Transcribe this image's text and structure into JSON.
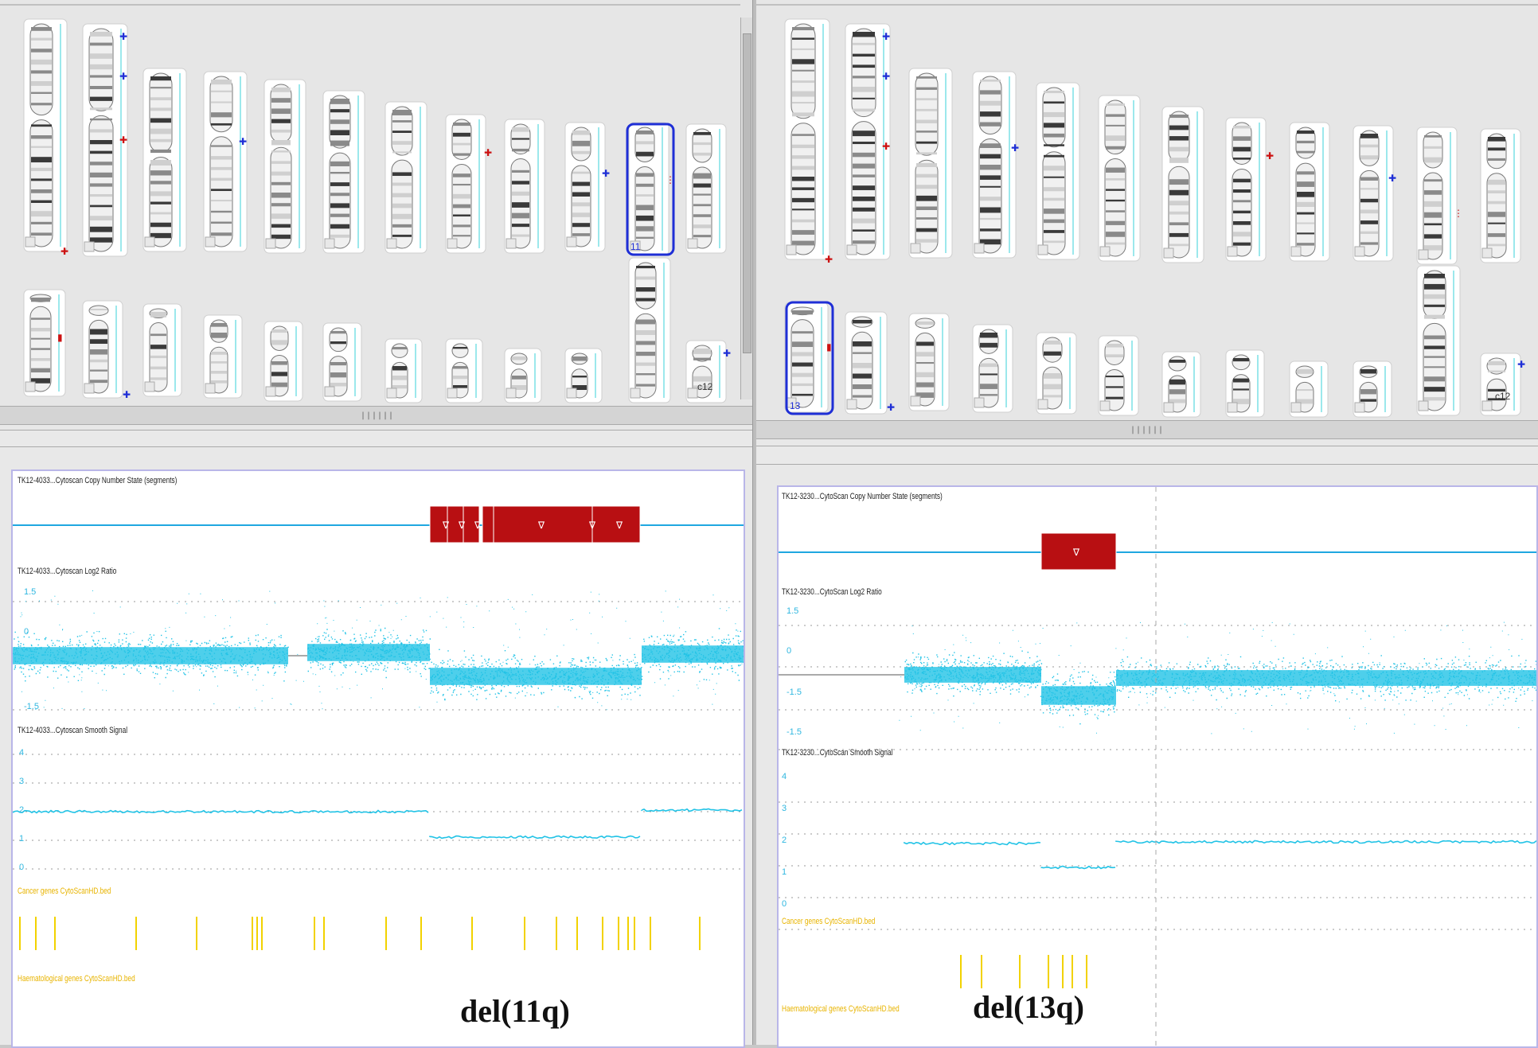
{
  "colors": {
    "log2_points": "#22c3e6",
    "segment_loss": "#b80f12",
    "baseline": "#1fa7e0",
    "gene_track": "#f2d200",
    "selection": "#1f2fd6"
  },
  "left": {
    "karyogram": {
      "selected_chromosome_label": "11",
      "sex_chromosome_label": "c12"
    },
    "browser": {
      "track_segments_label": "TK12-4033...Cytoscan Copy Number State (segments)",
      "track_log2_label": "TK12-4033...Cytoscan Log2 Ratio",
      "track_smooth_label": "TK12-4033...Cytoscan Smooth Signal",
      "track_gene1_label": "Cancer genes CytoScanHD.bed",
      "track_gene2_label": "Haematological genes CytoScanHD.bed",
      "log2_ticks": [
        "1.5",
        "0",
        "-1.5"
      ],
      "smooth_ticks": [
        "4",
        "3",
        "2",
        "1",
        "0"
      ],
      "segment_flags": [
        "∇",
        "∇",
        "∇",
        "∇",
        "∇",
        "∇"
      ]
    },
    "caption": "del(11q)"
  },
  "right": {
    "karyogram": {
      "selected_chromosome_label": "13",
      "sex_chromosome_label": "c12"
    },
    "browser": {
      "track_segments_label": "TK12-3230...CytoScan Copy Number State (segments)",
      "track_log2_label": "TK12-3230...CytoScan Log2 Ratio",
      "track_smooth_label": "TK12-3230...CytoScan Smooth Signal",
      "track_gene1_label": "Cancer genes CytoScanHD.bed",
      "track_gene2_label": "Haematological genes CytoScanHD.bed",
      "log2_ticks": [
        "1.5",
        "0",
        "-1.5",
        "-1.5"
      ],
      "smooth_ticks": [
        "4",
        "3",
        "2",
        "1",
        "0"
      ],
      "segment_flags": [
        "∇"
      ]
    },
    "caption": "del(13q)"
  }
}
